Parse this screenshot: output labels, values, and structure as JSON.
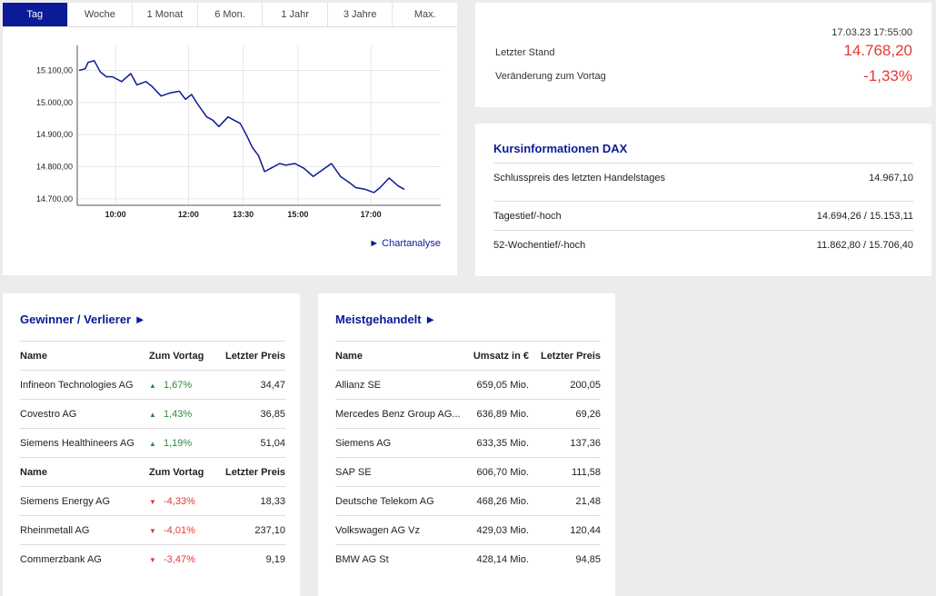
{
  "chart": {
    "tabs": [
      "Tag",
      "Woche",
      "1 Monat",
      "6 Mon.",
      "1 Jahr",
      "3 Jahre",
      "Max."
    ],
    "active_tab": 0,
    "link": "► Chartanalyse",
    "accent": "#0b1a96"
  },
  "chart_data": {
    "type": "line",
    "title": "",
    "xlabel": "",
    "ylabel": "",
    "x_ticks": [
      "10:00",
      "12:00",
      "13:30",
      "15:00",
      "17:00"
    ],
    "y_ticks": [
      "15.100,00",
      "15.000,00",
      "14.900,00",
      "14.800,00",
      "14.700,00"
    ],
    "ylim": [
      14680,
      15155
    ],
    "x": [
      "09:00",
      "09:10",
      "09:15",
      "09:25",
      "09:35",
      "09:45",
      "09:55",
      "10:10",
      "10:25",
      "10:35",
      "10:50",
      "11:00",
      "11:15",
      "11:30",
      "11:45",
      "11:55",
      "12:05",
      "12:15",
      "12:30",
      "12:40",
      "12:50",
      "13:05",
      "13:15",
      "13:25",
      "13:35",
      "13:45",
      "13:55",
      "14:05",
      "14:15",
      "14:30",
      "14:40",
      "14:55",
      "15:10",
      "15:25",
      "15:40",
      "15:55",
      "16:10",
      "16:25",
      "16:35",
      "16:50",
      "17:05",
      "17:15",
      "17:30",
      "17:45",
      "17:55"
    ],
    "series": [
      {
        "values": [
          15100,
          15105,
          15125,
          15130,
          15095,
          15080,
          15080,
          15065,
          15090,
          15055,
          15065,
          15050,
          15020,
          15030,
          15035,
          15010,
          15025,
          14995,
          14955,
          14945,
          14925,
          14955,
          14945,
          14935,
          14900,
          14860,
          14835,
          14785,
          14795,
          14810,
          14805,
          14810,
          14795,
          14770,
          14790,
          14810,
          14770,
          14750,
          14735,
          14730,
          14720,
          14735,
          14765,
          14740,
          14730
        ]
      }
    ],
    "grid": true
  },
  "quote": {
    "date": "17.03.23 17:55:00",
    "last_label": "Letzter Stand",
    "last_value": "14.768,20",
    "change_label": "Veränderung zum Vortag",
    "change_value": "-1,33%",
    "neg_color": "#e53935"
  },
  "info": {
    "title": "Kursinformationen DAX",
    "rows": [
      {
        "label": "Schlusspreis des letzten Handelstages",
        "value": "14.967,10"
      },
      {
        "label": "Tagestief/-hoch",
        "value": "14.694,26 / 15.153,11"
      },
      {
        "label": "52-Wochentief/-hoch",
        "value": "11.862,80 / 15.706,40"
      }
    ]
  },
  "gainers_losers": {
    "title": "Gewinner / Verlierer ►",
    "headers": [
      "Name",
      "Zum Vortag",
      "Letzter Preis"
    ],
    "gainers": [
      {
        "name": "Infineon Technologies AG",
        "change": "1,67%",
        "price": "34,47"
      },
      {
        "name": "Covestro AG",
        "change": "1,43%",
        "price": "36,85"
      },
      {
        "name": "Siemens Healthineers AG",
        "change": "1,19%",
        "price": "51,04"
      }
    ],
    "losers": [
      {
        "name": "Siemens Energy AG",
        "change": "-4,33%",
        "price": "18,33"
      },
      {
        "name": "Rheinmetall AG",
        "change": "-4,01%",
        "price": "237,10"
      },
      {
        "name": "Commerzbank AG",
        "change": "-3,47%",
        "price": "9,19"
      }
    ],
    "up_color": "#2e8b3a"
  },
  "most_traded": {
    "title": "Meistgehandelt ►",
    "headers": [
      "Name",
      "Umsatz in €",
      "Letzter Preis"
    ],
    "rows": [
      {
        "name": "Allianz SE",
        "volume": "659,05 Mio.",
        "price": "200,05"
      },
      {
        "name": "Mercedes Benz Group AG...",
        "volume": "636,89 Mio.",
        "price": "69,26"
      },
      {
        "name": "Siemens AG",
        "volume": "633,35 Mio.",
        "price": "137,36"
      },
      {
        "name": "SAP SE",
        "volume": "606,70 Mio.",
        "price": "111,58"
      },
      {
        "name": "Deutsche Telekom AG",
        "volume": "468,26 Mio.",
        "price": "21,48"
      },
      {
        "name": "Volkswagen AG Vz",
        "volume": "429,03 Mio.",
        "price": "120,44"
      },
      {
        "name": "BMW AG St",
        "volume": "428,14 Mio.",
        "price": "94,85"
      }
    ]
  }
}
